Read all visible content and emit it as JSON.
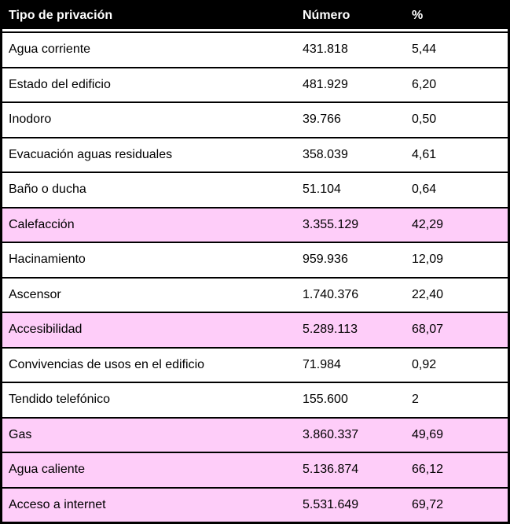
{
  "colors": {
    "border": "#000000",
    "header_bg": "#000000",
    "header_text": "#ffffff",
    "row_bg": "#ffffff",
    "highlight_bg": "#fecdf9",
    "text": "#000000"
  },
  "chart_data": {
    "type": "table",
    "title": "",
    "columns": [
      {
        "key": "tipo",
        "label": "Tipo de privación"
      },
      {
        "key": "numero",
        "label": "Número"
      },
      {
        "key": "pct",
        "label": "%"
      }
    ],
    "rows": [
      {
        "tipo": "Agua corriente",
        "numero": "431.818",
        "numero_value": 431818,
        "pct": "5,44",
        "pct_value": 5.44,
        "highlighted": false
      },
      {
        "tipo": "Estado del edificio",
        "numero": "481.929",
        "numero_value": 481929,
        "pct": "6,20",
        "pct_value": 6.2,
        "highlighted": false
      },
      {
        "tipo": "Inodoro",
        "numero": "39.766",
        "numero_value": 39766,
        "pct": "0,50",
        "pct_value": 0.5,
        "highlighted": false
      },
      {
        "tipo": "Evacuación aguas residuales",
        "numero": "358.039",
        "numero_value": 358039,
        "pct": "4,61",
        "pct_value": 4.61,
        "highlighted": false
      },
      {
        "tipo": "Baño o ducha",
        "numero": "51.104",
        "numero_value": 51104,
        "pct": "0,64",
        "pct_value": 0.64,
        "highlighted": false
      },
      {
        "tipo": "Calefacción",
        "numero": "3.355.129",
        "numero_value": 3355129,
        "pct": "42,29",
        "pct_value": 42.29,
        "highlighted": true
      },
      {
        "tipo": "Hacinamiento",
        "numero": "959.936",
        "numero_value": 959936,
        "pct": "12,09",
        "pct_value": 12.09,
        "highlighted": false
      },
      {
        "tipo": "Ascensor",
        "numero": "1.740.376",
        "numero_value": 1740376,
        "pct": "22,40",
        "pct_value": 22.4,
        "highlighted": false
      },
      {
        "tipo": "Accesibilidad",
        "numero": "5.289.113",
        "numero_value": 5289113,
        "pct": "68,07",
        "pct_value": 68.07,
        "highlighted": true
      },
      {
        "tipo": "Convivencias de usos en el edificio",
        "numero": "71.984",
        "numero_value": 71984,
        "pct": "0,92",
        "pct_value": 0.92,
        "highlighted": false
      },
      {
        "tipo": "Tendido telefónico",
        "numero": "155.600",
        "numero_value": 155600,
        "pct": "2",
        "pct_value": 2,
        "highlighted": false
      },
      {
        "tipo": "Gas",
        "numero": "3.860.337",
        "numero_value": 3860337,
        "pct": "49,69",
        "pct_value": 49.69,
        "highlighted": true
      },
      {
        "tipo": "Agua caliente",
        "numero": "5.136.874",
        "numero_value": 5136874,
        "pct": "66,12",
        "pct_value": 66.12,
        "highlighted": true
      },
      {
        "tipo": "Acceso a internet",
        "numero": "5.531.649",
        "numero_value": 5531649,
        "pct": "69,72",
        "pct_value": 69.72,
        "highlighted": true
      }
    ],
    "layout_hints": {
      "header_style": "black background, white bold text, left aligned",
      "highlight_rows_color": "#fecdf9",
      "grid": "horizontal rules only, thick black outer border",
      "alignment": "all columns left aligned"
    }
  }
}
